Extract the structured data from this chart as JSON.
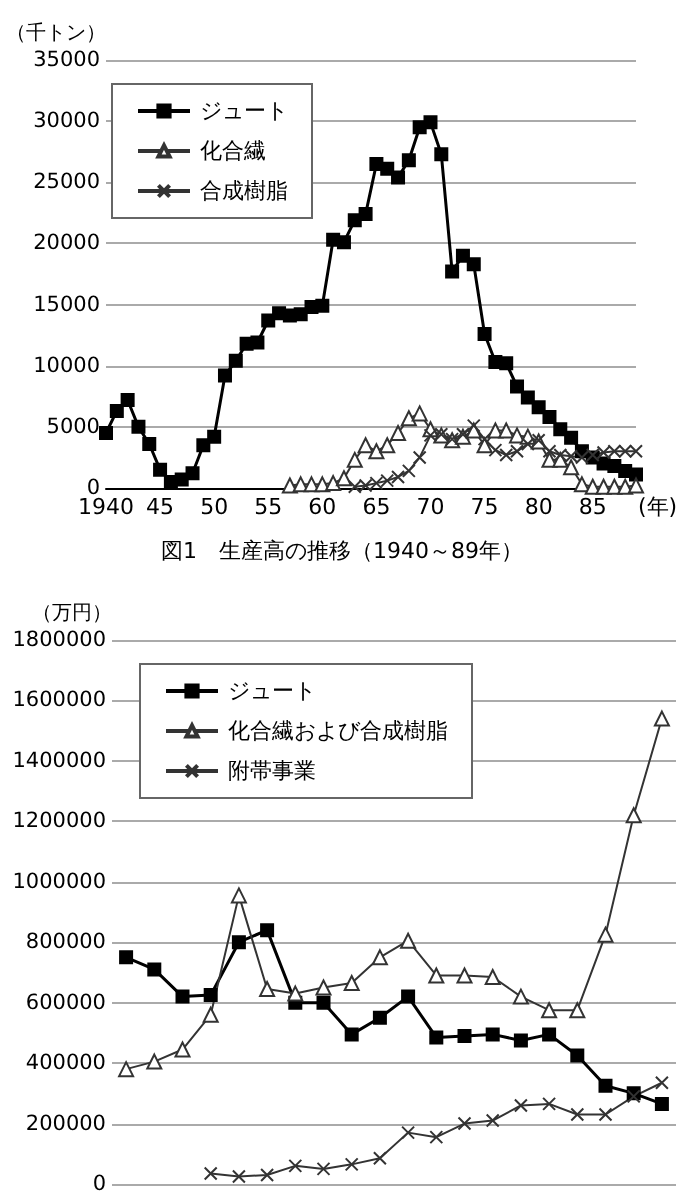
{
  "chart_data": [
    {
      "type": "line",
      "title": "図1　生産高の推移（1940～89年）",
      "ylabel": "（千トン）",
      "x": [
        1940,
        1941,
        1942,
        1943,
        1944,
        1945,
        1946,
        1947,
        1948,
        1949,
        1950,
        1951,
        1952,
        1953,
        1954,
        1955,
        1956,
        1957,
        1958,
        1959,
        1960,
        1961,
        1962,
        1963,
        1964,
        1965,
        1966,
        1967,
        1968,
        1969,
        1970,
        1971,
        1972,
        1973,
        1974,
        1975,
        1976,
        1977,
        1978,
        1979,
        1980,
        1981,
        1982,
        1983,
        1984,
        1985,
        1986,
        1987,
        1988,
        1989
      ],
      "series": [
        {
          "name": "ジュート",
          "color": "#000000",
          "marker": "square",
          "values": [
            4500,
            6300,
            7200,
            5000,
            3600,
            1500,
            500,
            700,
            1200,
            3500,
            4200,
            9200,
            10400,
            11800,
            11900,
            13700,
            14300,
            14100,
            14200,
            14800,
            14900,
            20300,
            20100,
            21900,
            22400,
            26500,
            26100,
            25400,
            26800,
            29500,
            29900,
            27300,
            17700,
            19000,
            18300,
            12600,
            10300,
            10200,
            8300,
            7400,
            6600,
            5800,
            4800,
            4100,
            3000,
            2500,
            2000,
            1800,
            1400,
            1100
          ]
        },
        {
          "name": "化合繊",
          "color": "#333333",
          "marker": "triangle",
          "values": [
            null,
            null,
            null,
            null,
            null,
            null,
            null,
            null,
            null,
            null,
            null,
            null,
            null,
            null,
            null,
            null,
            null,
            200,
            300,
            300,
            300,
            400,
            800,
            2300,
            3500,
            3000,
            3500,
            4500,
            5700,
            6100,
            4800,
            4300,
            3900,
            4200,
            4700,
            3500,
            4700,
            4700,
            4300,
            4200,
            3800,
            2300,
            2300,
            1700,
            300,
            100,
            100,
            100,
            100,
            200
          ]
        },
        {
          "name": "合成樹脂",
          "color": "#333333",
          "marker": "cross",
          "values": [
            null,
            null,
            null,
            null,
            null,
            null,
            null,
            null,
            null,
            null,
            null,
            null,
            null,
            null,
            null,
            null,
            null,
            null,
            null,
            null,
            null,
            null,
            null,
            100,
            200,
            400,
            600,
            900,
            1400,
            2500,
            4300,
            4400,
            4000,
            4400,
            5100,
            4000,
            3100,
            2700,
            3000,
            3600,
            3900,
            3000,
            2700,
            2600,
            2500,
            2700,
            2900,
            3000,
            3000,
            3000
          ]
        }
      ],
      "xlim": [
        1940,
        1989
      ],
      "xticks": [
        1940,
        {
          "value": 1945,
          "label": "45"
        },
        {
          "value": 1950,
          "label": "50"
        },
        {
          "value": 1955,
          "label": "55"
        },
        {
          "value": 1960,
          "label": "60"
        },
        {
          "value": 1965,
          "label": "65"
        },
        {
          "value": 1970,
          "label": "70"
        },
        {
          "value": 1975,
          "label": "75"
        },
        {
          "value": 1980,
          "label": "80"
        },
        {
          "value": 1985,
          "label": "85"
        }
      ],
      "xlabel": "(年)",
      "ylim": [
        0,
        35000
      ],
      "yticks": [
        0,
        5000,
        10000,
        15000,
        20000,
        25000,
        30000,
        35000
      ],
      "grid": "y",
      "legend": "top left"
    },
    {
      "type": "line",
      "ylabel": "（万円）",
      "categories": [
        null,
        null,
        null,
        null,
        null,
        null,
        null,
        null,
        null,
        null,
        null,
        null,
        null,
        null,
        null,
        null,
        null,
        null,
        null,
        null
      ],
      "series": [
        {
          "name": "ジュート",
          "color": "#000000",
          "marker": "square",
          "values": [
            750000,
            710000,
            620000,
            625000,
            800000,
            840000,
            600000,
            600000,
            495000,
            550000,
            620000,
            485000,
            490000,
            495000,
            475000,
            495000,
            425000,
            325000,
            300000,
            265000
          ]
        },
        {
          "name": "化合繊および合成樹脂",
          "color": "#333333",
          "marker": "triangle",
          "values": [
            380000,
            405000,
            445000,
            560000,
            955000,
            645000,
            630000,
            650000,
            665000,
            750000,
            805000,
            690000,
            690000,
            685000,
            620000,
            575000,
            575000,
            825000,
            1220000,
            1540000
          ]
        },
        {
          "name": "附帯事業",
          "color": "#333333",
          "marker": "cross",
          "values": [
            null,
            null,
            null,
            35000,
            25000,
            30000,
            60000,
            50000,
            65000,
            85000,
            170000,
            155000,
            200000,
            210000,
            260000,
            265000,
            230000,
            230000,
            290000,
            335000
          ]
        }
      ],
      "ylim": [
        0,
        1800000
      ],
      "yticks": [
        0,
        200000,
        400000,
        600000,
        800000,
        1000000,
        1200000,
        1400000,
        1600000,
        1800000
      ],
      "grid": "y",
      "legend": "top left",
      "tick_labels": "y"
    }
  ]
}
